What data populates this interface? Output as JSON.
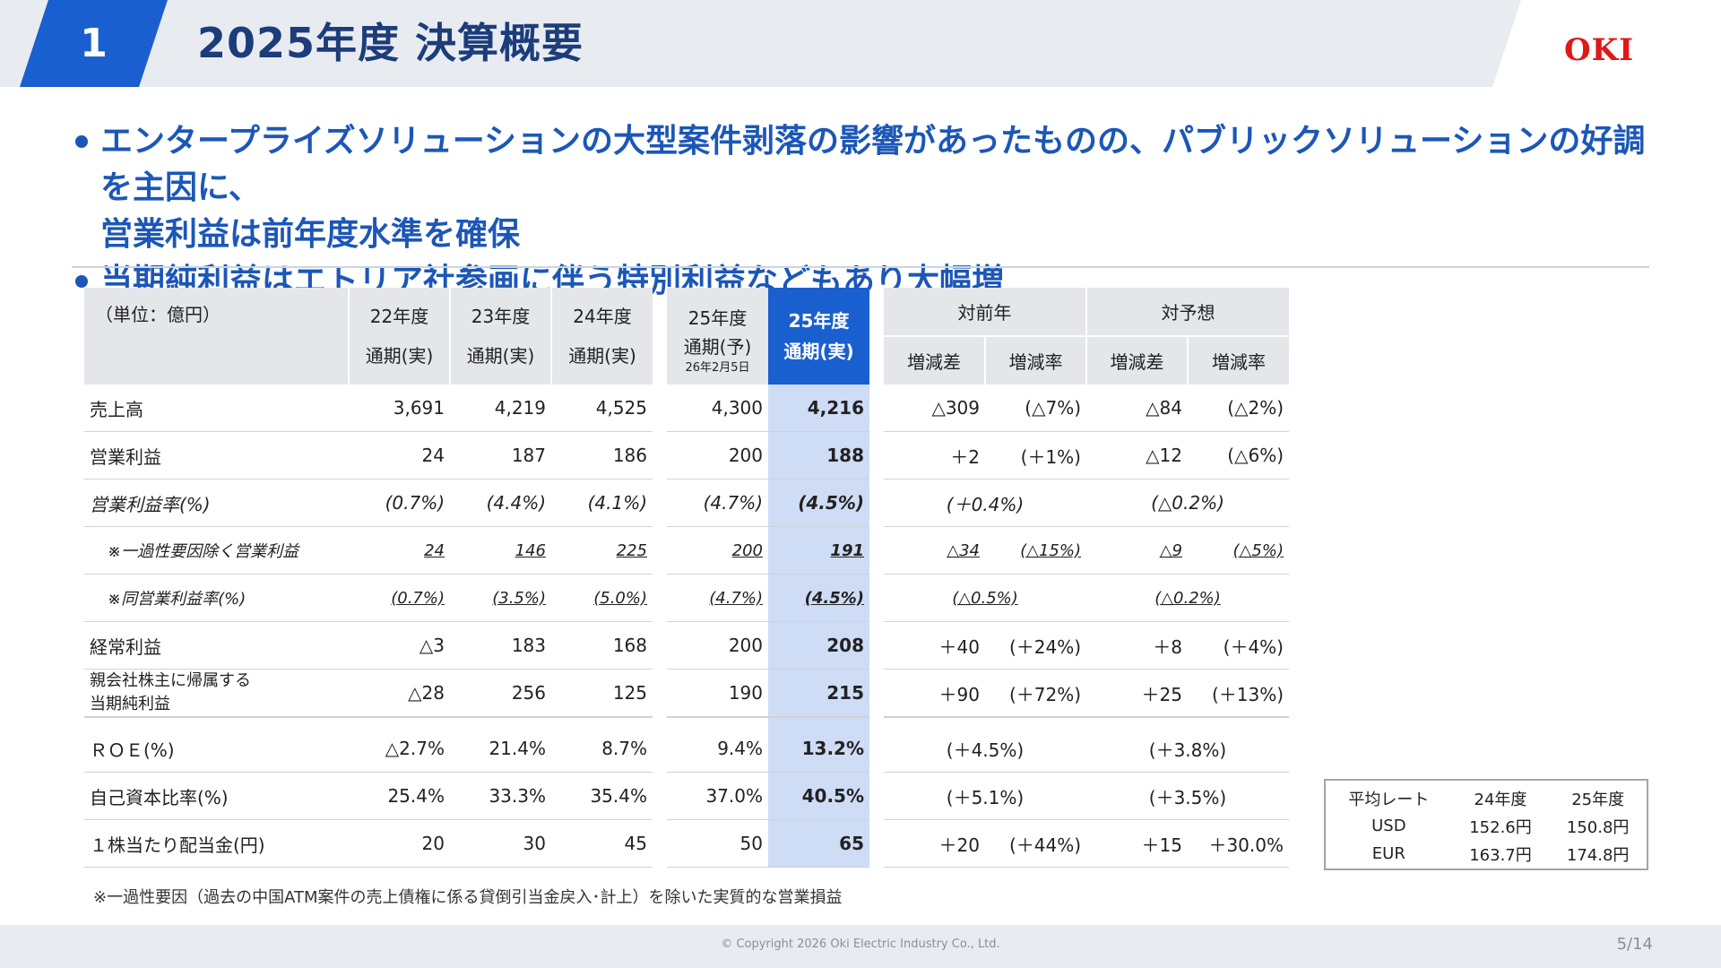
{
  "header": {
    "section_number": "1",
    "title": "2025年度 決算概要",
    "logo": "OKI"
  },
  "bullets": [
    "エンタープライズソリューションの大型案件剥落の影響があったものの、パブリックソリューションの好調を主因に、",
    "営業利益は前年度水準を確保",
    "当期純利益はエトリア社参画に伴う特別利益などもあり大幅増"
  ],
  "table": {
    "unit_label": "（単位：億円）",
    "columns": {
      "fy22": {
        "year": "22年度",
        "type": "通期(実)"
      },
      "fy23": {
        "year": "23年度",
        "type": "通期(実)"
      },
      "fy24": {
        "year": "24年度",
        "type": "通期(実)"
      },
      "fy25f": {
        "year": "25年度",
        "type": "通期(予)",
        "date": "26年2月5日"
      },
      "fy25a": {
        "year": "25年度",
        "type": "通期(実)"
      },
      "vs_prev": "対前年",
      "vs_fcst": "対予想",
      "diff": "増減差",
      "rate": "増減率"
    },
    "rows": [
      {
        "label": "売上高",
        "fy22": "3,691",
        "fy23": "4,219",
        "fy24": "4,525",
        "fy25f": "4,300",
        "fy25a": "4,216",
        "prev_diff": "△309",
        "prev_rate": "(△7%)",
        "fcst_diff": "△84",
        "fcst_rate": "(△2%)"
      },
      {
        "label": "営業利益",
        "fy22": "24",
        "fy23": "187",
        "fy24": "186",
        "fy25f": "200",
        "fy25a": "188",
        "prev_diff": "＋2",
        "prev_rate": "(＋1%)",
        "fcst_diff": "△12",
        "fcst_rate": "(△6%)"
      },
      {
        "label": "営業利益率(%)",
        "fy22": "(0.7%)",
        "fy23": "(4.4%)",
        "fy24": "(4.1%)",
        "fy25f": "(4.7%)",
        "fy25a": "(4.5%)",
        "prev": "(＋0.4%)",
        "fcst": "(△0.2%)"
      },
      {
        "label": "※一過性要因除く営業利益",
        "fy22": "24",
        "fy23": "146",
        "fy24": "225",
        "fy25f": "200",
        "fy25a": "191",
        "prev_diff": "△34",
        "prev_rate": "(△15%)",
        "fcst_diff": "△9",
        "fcst_rate": "(△5%)"
      },
      {
        "label": "※同営業利益率(%)",
        "fy22": "(0.7%)",
        "fy23": "(3.5%)",
        "fy24": "(5.0%)",
        "fy25f": "(4.7%)",
        "fy25a": "(4.5%)",
        "prev": "(△0.5%)",
        "fcst": "(△0.2%)"
      },
      {
        "label": "経常利益",
        "fy22": "△3",
        "fy23": "183",
        "fy24": "168",
        "fy25f": "200",
        "fy25a": "208",
        "prev_diff": "＋40",
        "prev_rate": "(＋24%)",
        "fcst_diff": "＋8",
        "fcst_rate": "(＋4%)"
      },
      {
        "label1": "親会社株主に帰属する",
        "label2": "当期純利益",
        "fy22": "△28",
        "fy23": "256",
        "fy24": "125",
        "fy25f": "190",
        "fy25a": "215",
        "prev_diff": "＋90",
        "prev_rate": "(＋72%)",
        "fcst_diff": "＋25",
        "fcst_rate": "(＋13%)"
      },
      {
        "label": "ＲＯＥ(%)",
        "fy22": "△2.7%",
        "fy23": "21.4%",
        "fy24": "8.7%",
        "fy25f": "9.4%",
        "fy25a": "13.2%",
        "prev": "(＋4.5%)",
        "fcst": "(＋3.8%)"
      },
      {
        "label": "自己資本比率(%)",
        "fy22": "25.4%",
        "fy23": "33.3%",
        "fy24": "35.4%",
        "fy25f": "37.0%",
        "fy25a": "40.5%",
        "prev": "(＋5.1%)",
        "fcst": "(＋3.5%)"
      },
      {
        "label": "１株当たり配当金(円)",
        "fy22": "20",
        "fy23": "30",
        "fy24": "45",
        "fy25f": "50",
        "fy25a": "65",
        "prev_diff": "＋20",
        "prev_rate": "(＋44%)",
        "fcst_diff": "＋15",
        "fcst_rate": "＋30.0%"
      }
    ]
  },
  "note": "※一過性要因（過去の中国ATM案件の売上債権に係る貸倒引当金戻入･計上）を除いた実質的な営業損益",
  "rates": {
    "header": [
      "平均レート",
      "24年度",
      "25年度"
    ],
    "rows": [
      [
        "USD",
        "152.6円",
        "150.8円"
      ],
      [
        "EUR",
        "163.7円",
        "174.8円"
      ]
    ]
  },
  "footer": {
    "copyright": "© Copyright 2026 Oki Electric Industry Co., Ltd.",
    "page": "5/14"
  }
}
